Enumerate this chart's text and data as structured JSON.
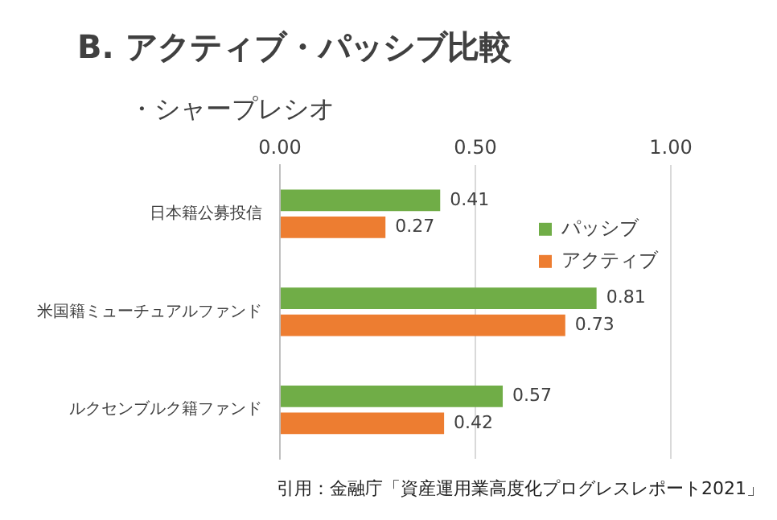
{
  "chart_data": {
    "type": "bar",
    "orientation": "horizontal",
    "title": "B. アクティブ・パッシブ比較",
    "subtitle": "・シャープレシオ",
    "categories": [
      "日本籍公募投信",
      "米国籍ミューチュアルファンド",
      "ルクセンブルク籍ファンド"
    ],
    "series": [
      {
        "name": "パッシブ",
        "color": "#70ad47",
        "values": [
          0.41,
          0.81,
          0.57
        ]
      },
      {
        "name": "アクティブ",
        "color": "#ed7d31",
        "values": [
          0.27,
          0.73,
          0.42
        ]
      }
    ],
    "xlim": [
      0,
      1
    ],
    "xticks": [
      {
        "value": 0,
        "label": "0.00"
      },
      {
        "value": 0.5,
        "label": "0.50"
      },
      {
        "value": 1,
        "label": "1.00"
      }
    ],
    "grid": "x",
    "legend": "top right",
    "data_labels": true,
    "annotations": [
      "引用：金融庁「資産運用業高度化プログレスレポート2021」"
    ]
  }
}
